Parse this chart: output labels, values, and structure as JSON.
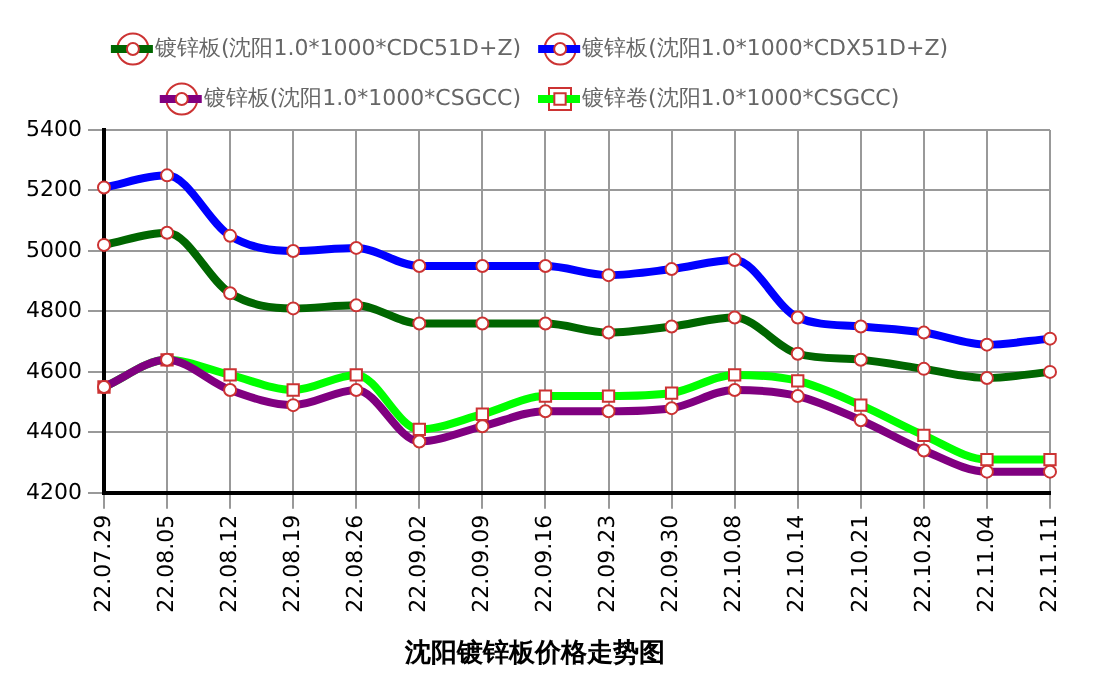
{
  "chart_data": {
    "type": "line",
    "title": "沈阳镀锌板价格走势图",
    "categories": [
      "22.07.29",
      "22.08.05",
      "22.08.12",
      "22.08.19",
      "22.08.26",
      "22.09.02",
      "22.09.09",
      "22.09.16",
      "22.09.23",
      "22.09.30",
      "22.10.08",
      "22.10.14",
      "22.10.21",
      "22.10.28",
      "22.11.04",
      "22.11.11"
    ],
    "series": [
      {
        "name": "镀锌板(沈阳1.0*1000*CDC51D+Z)",
        "color": "#006600",
        "marker": "circle",
        "values": [
          5020,
          5060,
          4860,
          4810,
          4820,
          4760,
          4760,
          4760,
          4730,
          4750,
          4780,
          4660,
          4640,
          4610,
          4580,
          4600
        ]
      },
      {
        "name": "镀锌板(沈阳1.0*1000*CDX51D+Z)",
        "color": "#0000ff",
        "marker": "circle",
        "values": [
          5210,
          5250,
          5050,
          5000,
          5010,
          4950,
          4950,
          4950,
          4920,
          4940,
          4970,
          4780,
          4750,
          4730,
          4690,
          4710
        ]
      },
      {
        "name": "镀锌板(沈阳1.0*1000*CSGCC)",
        "color": "#800080",
        "marker": "circle",
        "values": [
          4550,
          4640,
          4540,
          4490,
          4540,
          4370,
          4420,
          4470,
          4470,
          4480,
          4540,
          4520,
          4440,
          4340,
          4270,
          4270
        ]
      },
      {
        "name": "镀锌卷(沈阳1.0*1000*CSGCC)",
        "color": "#00ff00",
        "marker": "square",
        "values": [
          4550,
          4640,
          4590,
          4540,
          4590,
          4410,
          4460,
          4520,
          4520,
          4530,
          4590,
          4570,
          4490,
          4390,
          4310,
          4310
        ]
      }
    ],
    "ylim": [
      4200,
      5400
    ],
    "yticks": [
      4200,
      4400,
      4600,
      4800,
      5000,
      5200,
      5400
    ],
    "grid": true,
    "legend": "top",
    "line_style": "solid"
  }
}
